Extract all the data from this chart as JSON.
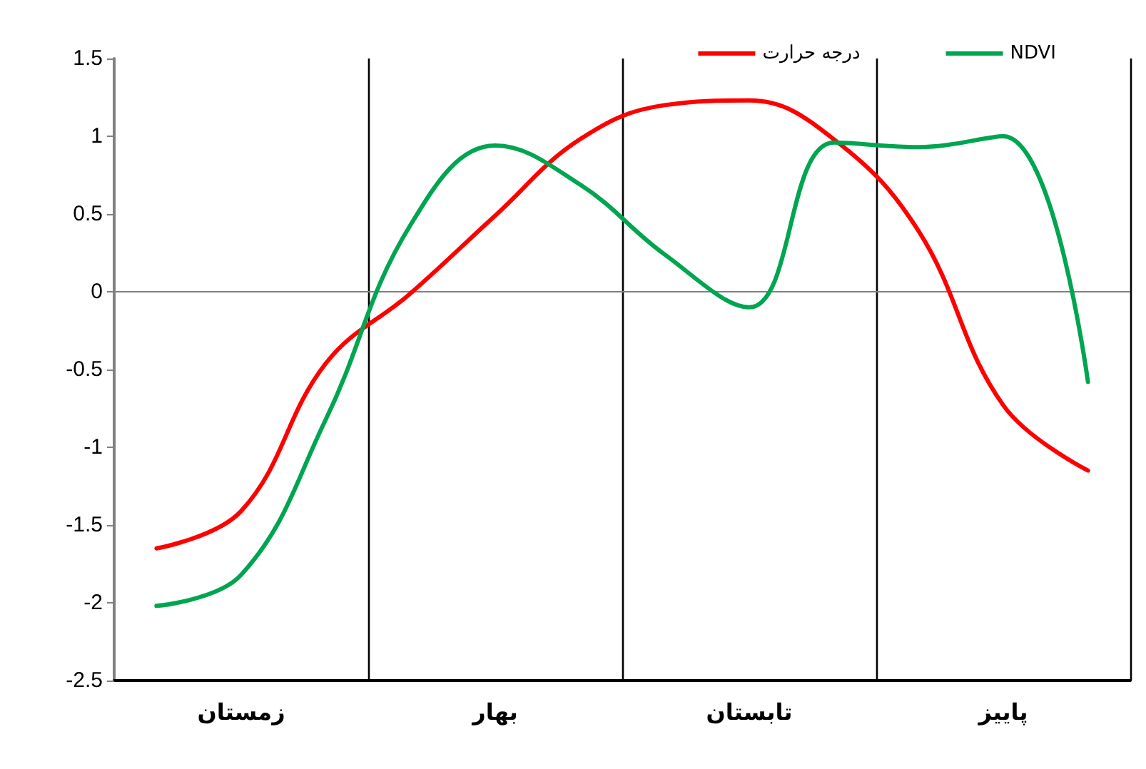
{
  "chart_data": {
    "type": "line",
    "categories": [
      null,
      "زمستان",
      null,
      null,
      "بهار",
      null,
      null,
      "تابستان",
      null,
      null,
      "پاییز",
      null
    ],
    "series": [
      {
        "name": "درجه حرارت",
        "color": "#ff0000",
        "values": [
          -1.65,
          -1.41,
          -0.46,
          -0.01,
          0.49,
          0.98,
          1.2,
          1.23,
          0.98,
          0.39,
          -0.73,
          -1.15
        ]
      },
      {
        "name": "NDVI",
        "color": "#00a550",
        "values": [
          -2.02,
          -1.82,
          -0.82,
          0.43,
          0.94,
          0.69,
          0.24,
          -0.1,
          0.96,
          0.93,
          1.0,
          -0.58
        ]
      }
    ],
    "ylim": [
      -2.5,
      1.5
    ],
    "yticks": [
      -2.5,
      -2,
      -1.5,
      -1,
      -0.5,
      0,
      0.5,
      1,
      1.5
    ],
    "ref_lines": [
      {
        "axis": "y",
        "value": 0,
        "color": "#808080"
      }
    ],
    "grid": false,
    "legend": "top right",
    "marker": "none",
    "line_style": "solid"
  }
}
